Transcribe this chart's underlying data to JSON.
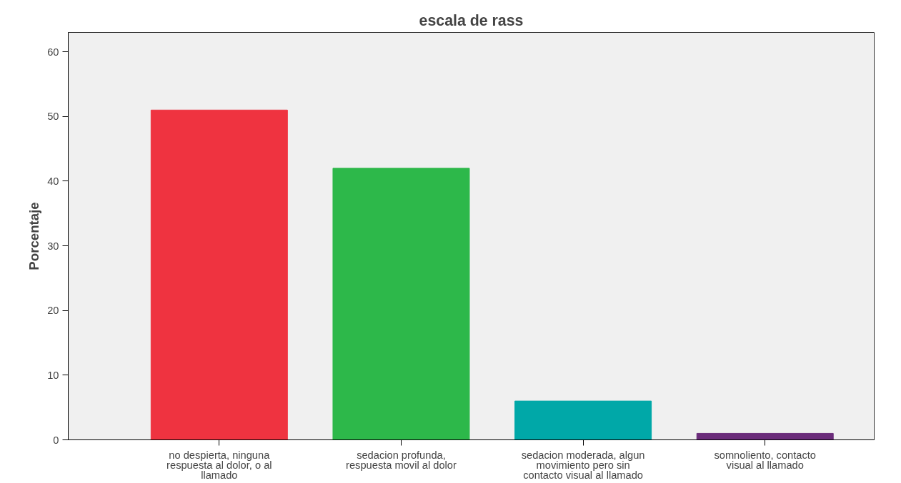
{
  "chart_data": {
    "type": "bar",
    "title": "escala de rass",
    "ylabel": "Porcentaje",
    "categories": [
      "no despierta, ninguna respuesta al dolor, o al llamado",
      "sedacion profunda, respuesta movil al dolor",
      "sedacion moderada, algun movimiento pero sin contacto visual al llamado",
      "somnoliento, contacto visual al llamado"
    ],
    "values": [
      51,
      42,
      6,
      1
    ],
    "colors": [
      "#ef3340",
      "#2db84a",
      "#00a8a8",
      "#6b2c7a"
    ],
    "ylim": [
      0,
      63
    ],
    "yticks": [
      0,
      10,
      20,
      30,
      40,
      50,
      60
    ],
    "grid": false
  }
}
